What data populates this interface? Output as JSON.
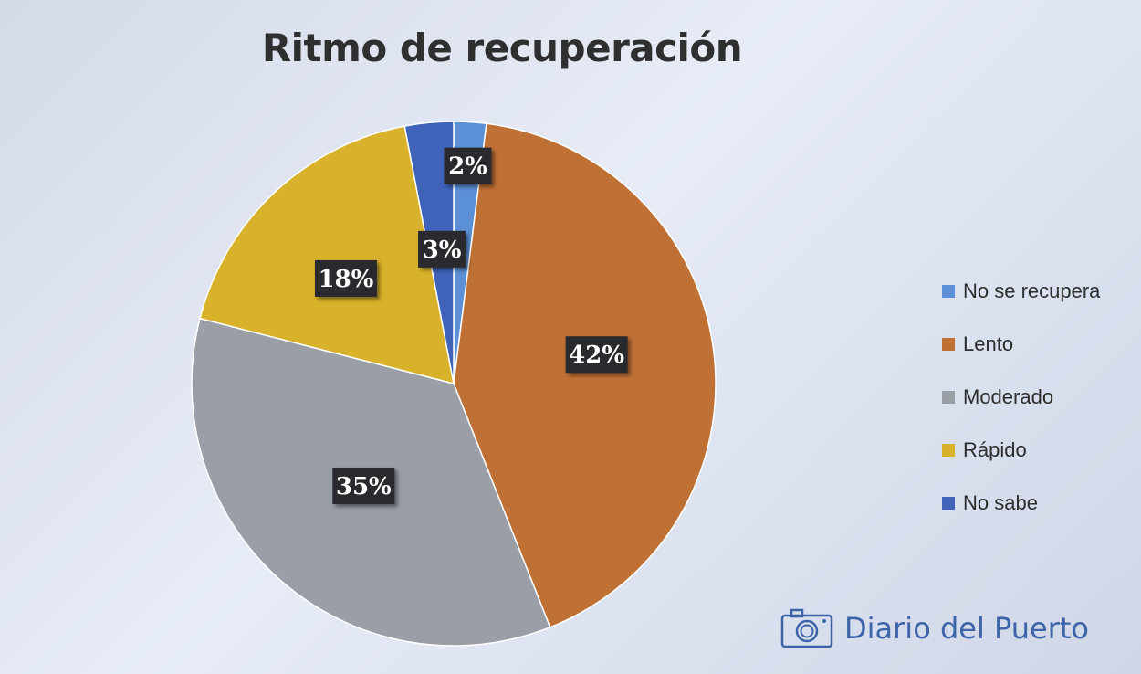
{
  "chart_data": {
    "type": "pie",
    "title": "Ritmo de recuperación",
    "slices": [
      {
        "label": "No se recupera",
        "value": 2,
        "display": "2%",
        "color": "#5b8fd6"
      },
      {
        "label": "Lento",
        "value": 42,
        "display": "42%",
        "color": "#bf7035"
      },
      {
        "label": "Moderado",
        "value": 35,
        "display": "35%",
        "color": "#9a9ea7"
      },
      {
        "label": "Rápido",
        "value": 18,
        "display": "18%",
        "color": "#d8b22a"
      },
      {
        "label": "No sabe",
        "value": 3,
        "display": "3%",
        "color": "#3f63b8"
      }
    ],
    "legend_position": "right"
  },
  "watermark": {
    "text": "Diario del Puerto",
    "icon": "camera-icon",
    "color": "#3d63a8"
  }
}
